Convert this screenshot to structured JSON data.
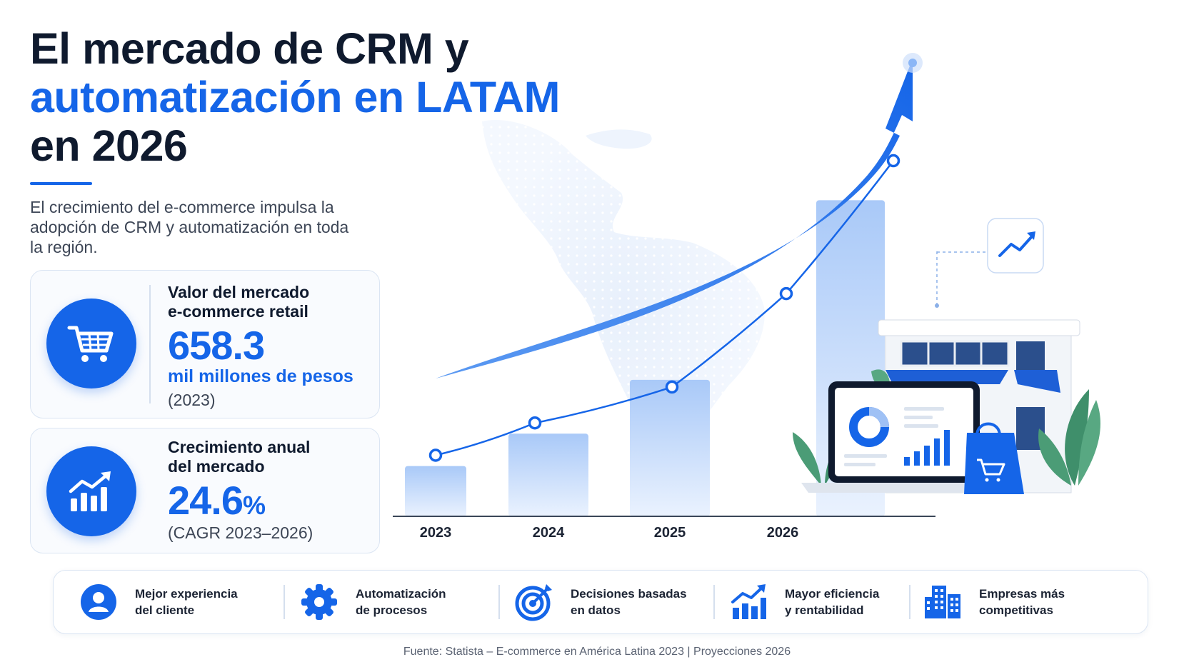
{
  "title": {
    "line1": "El mercado de CRM y",
    "line2": "automatización en LATAM",
    "line3": "en 2026"
  },
  "subtitle": "El crecimiento del e-commerce impulsa la adopción de CRM y automatización en toda la región.",
  "cards": [
    {
      "icon": "shopping-cart-icon",
      "label_line1": "Valor del mercado",
      "label_line2": "e-commerce retail",
      "value": "658.3",
      "unit": "mil millones de pesos",
      "note": "(2023)"
    },
    {
      "icon": "growth-chart-icon",
      "label_line1": "Crecimiento anual",
      "label_line2": "del mercado",
      "value": "24.6",
      "value_suffix": "%",
      "note": "(CAGR 2023–2026)"
    }
  ],
  "chart_data": {
    "type": "bar",
    "categories": [
      "2023",
      "2024",
      "2025",
      "2026"
    ],
    "values": [
      14,
      23,
      38,
      88
    ],
    "line_values": [
      17,
      26,
      40,
      92
    ],
    "ylim": [
      0,
      100
    ],
    "title": "",
    "xlabel": "",
    "ylabel": "",
    "grid": false,
    "colors": {
      "bar": "#b9d3fa",
      "line": "#1565e8",
      "arrow": "#1565e8"
    }
  },
  "benefits": [
    {
      "icon": "user-icon",
      "text": "Mejor experiencia\ndel cliente"
    },
    {
      "icon": "gear-icon",
      "text": "Automatización\nde procesos"
    },
    {
      "icon": "target-icon",
      "text": "Decisiones basadas\nen datos"
    },
    {
      "icon": "bar-chart-growth-icon",
      "text": "Mayor eficiencia\ny rentabilidad"
    },
    {
      "icon": "buildings-icon",
      "text": "Empresas más\ncompetitivas"
    }
  ],
  "source": "Fuente: Statista – E-commerce en América Latina 2023  |  Proyecciones 2026",
  "colors": {
    "accent": "#1565e8",
    "dark": "#0f1a2e"
  }
}
